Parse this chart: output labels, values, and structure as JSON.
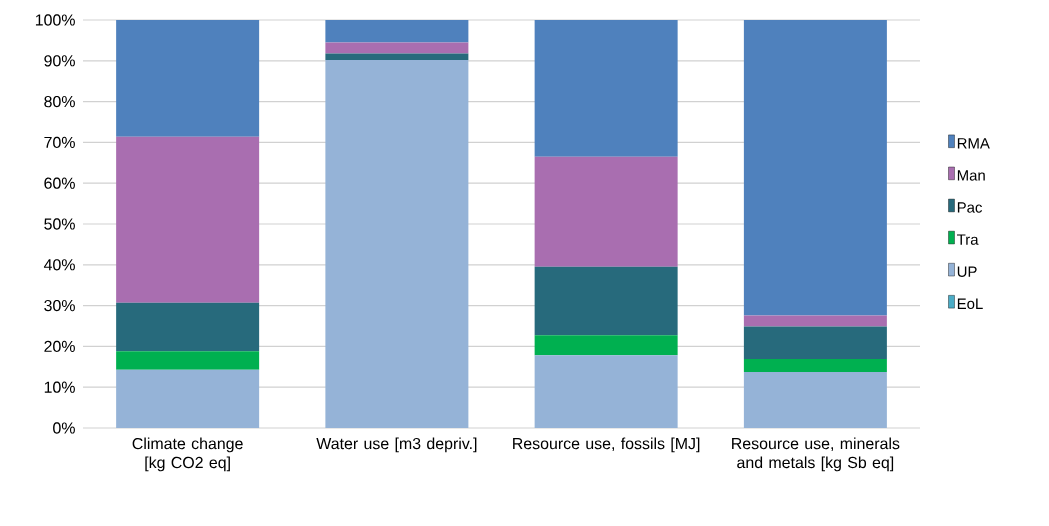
{
  "chart_data": {
    "type": "bar",
    "stacked": true,
    "categories": [
      "Climate change [kg CO2 eq]",
      "Water use [m3 depriv.]",
      "Resource use, fossils [MJ]",
      "Resource use, minerals and metals [kg Sb eq]"
    ],
    "series": [
      {
        "name": "EoL",
        "color": "#4bacc6",
        "values": [
          0,
          0,
          0,
          0
        ]
      },
      {
        "name": "UP",
        "color": "#95b3d7",
        "values": [
          14.3,
          90.2,
          17.8,
          13.7
        ]
      },
      {
        "name": "Tra",
        "color": "#00b050",
        "values": [
          4.5,
          0,
          4.9,
          3.2
        ]
      },
      {
        "name": "Pac",
        "color": "#276a7c",
        "values": [
          11.9,
          1.6,
          16.8,
          8.0
        ]
      },
      {
        "name": "Man",
        "color": "#a96eb0",
        "values": [
          40.7,
          2.7,
          27.0,
          2.7
        ]
      },
      {
        "name": "RMA",
        "color": "#4f81bd",
        "values": [
          28.6,
          5.5,
          33.5,
          72.4
        ]
      }
    ],
    "ylim": [
      0,
      100
    ],
    "yticks": [
      {
        "value": 0,
        "label": "0%"
      },
      {
        "value": 10,
        "label": "10%"
      },
      {
        "value": 20,
        "label": "20%"
      },
      {
        "value": 30,
        "label": "30%"
      },
      {
        "value": 40,
        "label": "40%"
      },
      {
        "value": 50,
        "label": "50%"
      },
      {
        "value": 60,
        "label": "60%"
      },
      {
        "value": 70,
        "label": "70%"
      },
      {
        "value": 80,
        "label": "80%"
      },
      {
        "value": 90,
        "label": "90%"
      },
      {
        "value": 100,
        "label": "100%"
      }
    ],
    "grid": "y",
    "legend": "right"
  }
}
